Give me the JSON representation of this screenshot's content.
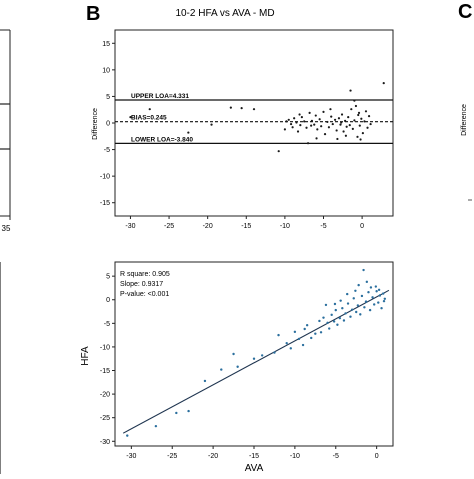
{
  "panel_labels": {
    "b": "B",
    "c": "C"
  },
  "left_panel": {
    "tick": "35"
  },
  "chart_data": [
    {
      "type": "scatter",
      "title": "10-2 HFA vs AVA - MD",
      "ylabel": "Difference",
      "xlabel": "",
      "xlim": [
        -32,
        4
      ],
      "ylim": [
        -17.5,
        17.5
      ],
      "xticks": [
        -30,
        -25,
        -20,
        -15,
        -10,
        -5,
        0
      ],
      "yticks": [
        -15,
        -10,
        -5,
        0,
        5,
        10,
        15
      ],
      "grid": false,
      "reference_lines": [
        {
          "label": "UPPER LOA=4.331",
          "value": 4.331,
          "style": "solid"
        },
        {
          "label": "BIAS=0.245",
          "value": 0.245,
          "style": "dashed"
        },
        {
          "label": "LOWER LOA=-3.840",
          "value": -3.84,
          "style": "solid"
        }
      ],
      "points": [
        [
          -30,
          1.1
        ],
        [
          -27.5,
          2.6
        ],
        [
          -22.5,
          -1.8
        ],
        [
          -19.5,
          -0.3
        ],
        [
          -17,
          2.9
        ],
        [
          -15.6,
          2.8
        ],
        [
          -14,
          2.6
        ],
        [
          -10.8,
          -5.3
        ],
        [
          -10,
          -1.2
        ],
        [
          -9.8,
          0.3
        ],
        [
          -9.5,
          0.6
        ],
        [
          -9.2,
          -0.2
        ],
        [
          -9,
          -0.8
        ],
        [
          -8.8,
          0.9
        ],
        [
          -8.5,
          0.1
        ],
        [
          -8.3,
          -1.6
        ],
        [
          -8,
          -0.4
        ],
        [
          -7.8,
          1.1
        ],
        [
          -7.5,
          0.3
        ],
        [
          -7.2,
          -0.9
        ],
        [
          -7,
          -3.8
        ],
        [
          -6.8,
          1.9
        ],
        [
          -6.5,
          0.4
        ],
        [
          -6.2,
          -0.3
        ],
        [
          -6,
          1.4
        ],
        [
          -5.8,
          -1.2
        ],
        [
          -5.5,
          0.7
        ],
        [
          -5.3,
          -0.6
        ],
        [
          -5,
          2.1
        ],
        [
          -4.8,
          -2.1
        ],
        [
          -4.5,
          0.2
        ],
        [
          -4.3,
          -0.8
        ],
        [
          -4,
          1.2
        ],
        [
          -3.8,
          -0.2
        ],
        [
          -3.5,
          0.6
        ],
        [
          -3.3,
          -1.4
        ],
        [
          -3,
          0.9
        ],
        [
          -2.8,
          -0.3
        ],
        [
          -2.6,
          1.6
        ],
        [
          -2.4,
          -1.6
        ],
        [
          -2.2,
          0.4
        ],
        [
          -2,
          -0.7
        ],
        [
          -1.8,
          1.1
        ],
        [
          -1.6,
          -0.4
        ],
        [
          -1.4,
          2.6
        ],
        [
          -1.2,
          -1.1
        ],
        [
          -1,
          0.5
        ],
        [
          -0.8,
          3.2
        ],
        [
          -0.6,
          -2.6
        ],
        [
          -0.5,
          1.5
        ],
        [
          -0.3,
          -0.5
        ],
        [
          -0.1,
          0.8
        ],
        [
          0.1,
          -1.9
        ],
        [
          0.3,
          0.3
        ],
        [
          0.5,
          2.2
        ],
        [
          0.7,
          -0.9
        ],
        [
          0.9,
          1.3
        ],
        [
          1.1,
          -0.2
        ],
        [
          -1.5,
          6.1
        ],
        [
          -3.2,
          -3
        ],
        [
          -2.1,
          -2.4
        ],
        [
          -4.1,
          2.6
        ],
        [
          -5.9,
          -2.9
        ],
        [
          -1,
          4.2
        ],
        [
          -0.2,
          -3.1
        ],
        [
          2.8,
          7.5
        ],
        [
          -0.4,
          1.9
        ],
        [
          -2.7,
          0.1
        ],
        [
          -6.6,
          -0.5
        ],
        [
          -8.1,
          1.6
        ]
      ]
    },
    {
      "type": "scatter",
      "xlabel": "AVA",
      "ylabel": "HFA",
      "xlim": [
        -32,
        2
      ],
      "ylim": [
        -31,
        8
      ],
      "xticks": [
        -30,
        -25,
        -20,
        -15,
        -10,
        -5,
        0
      ],
      "yticks": [
        -30,
        -25,
        -20,
        -15,
        -10,
        -5,
        0,
        5
      ],
      "grid": false,
      "annotations": [
        "R square: 0.905",
        "Slope: 0.9317",
        "P-value: <0.001"
      ],
      "regression": {
        "slope": 0.9317,
        "intercept": 0.6,
        "x_range": [
          -31,
          1.5
        ]
      },
      "points": [
        [
          -30.5,
          -28.8
        ],
        [
          -27,
          -26.8
        ],
        [
          -24.5,
          -24
        ],
        [
          -23,
          -23.6
        ],
        [
          -21,
          -17.2
        ],
        [
          -19,
          -14.8
        ],
        [
          -17.5,
          -11.5
        ],
        [
          -17,
          -14.2
        ],
        [
          -15,
          -12.5
        ],
        [
          -14,
          -11.8
        ],
        [
          -12.5,
          -11.2
        ],
        [
          -12,
          -7.5
        ],
        [
          -11,
          -9.2
        ],
        [
          -10.5,
          -10.3
        ],
        [
          -10,
          -6.8
        ],
        [
          -9.5,
          -8.3
        ],
        [
          -9,
          -9.6
        ],
        [
          -8.8,
          -6.2
        ],
        [
          -8.5,
          -5.4
        ],
        [
          -8,
          -8.1
        ],
        [
          -7.5,
          -7.2
        ],
        [
          -7,
          -4.5
        ],
        [
          -6.8,
          -6.9
        ],
        [
          -6.5,
          -3.8
        ],
        [
          -6,
          -4.9
        ],
        [
          -5.8,
          -6.1
        ],
        [
          -5.5,
          -3.2
        ],
        [
          -5.2,
          -4.6
        ],
        [
          -5,
          -2.2
        ],
        [
          -4.8,
          -5.3
        ],
        [
          -4.5,
          -3.9
        ],
        [
          -4.2,
          -1.8
        ],
        [
          -4,
          -4.4
        ],
        [
          -3.8,
          -2.9
        ],
        [
          -3.5,
          -0.8
        ],
        [
          -3.2,
          -3.6
        ],
        [
          -3,
          -2.1
        ],
        [
          -2.8,
          0.3
        ],
        [
          -2.5,
          -2.6
        ],
        [
          -2.3,
          -1.2
        ],
        [
          -2,
          -3.1
        ],
        [
          -1.8,
          0.8
        ],
        [
          -1.5,
          -1.6
        ],
        [
          -1.3,
          -0.4
        ],
        [
          -1,
          1.6
        ],
        [
          -0.8,
          -2.2
        ],
        [
          -0.5,
          0.5
        ],
        [
          -0.3,
          -1
        ],
        [
          0,
          1.8
        ],
        [
          0.2,
          -0.6
        ],
        [
          0.4,
          0.9
        ],
        [
          0.6,
          -1.8
        ],
        [
          0.8,
          1.3
        ],
        [
          1,
          0.2
        ],
        [
          -1.6,
          6.3
        ],
        [
          -2.2,
          3.1
        ],
        [
          -0.7,
          2.6
        ],
        [
          0.3,
          2.1
        ],
        [
          -3.6,
          1.2
        ],
        [
          -6.2,
          -1.1
        ],
        [
          -1.2,
          3.8
        ],
        [
          0.9,
          -0.3
        ],
        [
          -4.4,
          -0.2
        ],
        [
          -2.6,
          1.9
        ],
        [
          -5.1,
          -0.9
        ],
        [
          -0.1,
          2.8
        ]
      ]
    }
  ]
}
